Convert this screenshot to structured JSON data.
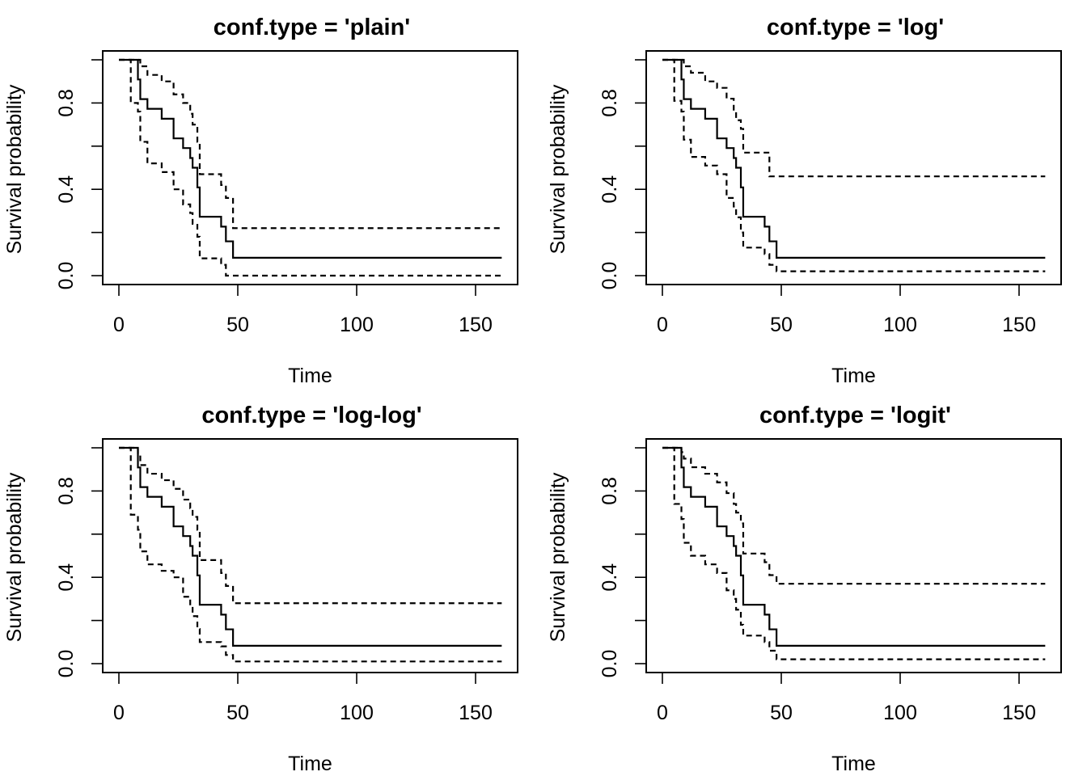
{
  "chart_data": [
    {
      "type": "line",
      "step": true,
      "title": "conf.type = 'plain'",
      "xlabel": "Time",
      "ylabel": "Survival probability",
      "xlim": [
        0,
        160
      ],
      "ylim": [
        0,
        1
      ],
      "xticks": [
        0,
        50,
        100,
        150
      ],
      "yticks": [
        0.0,
        0.2,
        0.4,
        0.6,
        0.8,
        1.0
      ],
      "ytick_labels": [
        "0.0",
        "",
        "0.4",
        "",
        "0.8",
        ""
      ],
      "series": [
        {
          "style": "solid",
          "x": [
            0,
            5,
            8,
            9,
            12,
            18,
            23,
            27,
            30,
            31,
            33,
            34,
            43,
            45,
            48,
            161
          ],
          "y": [
            1.0,
            1.0,
            0.909,
            0.818,
            0.773,
            0.727,
            0.636,
            0.591,
            0.545,
            0.5,
            0.409,
            0.273,
            0.227,
            0.159,
            0.083,
            0.083
          ]
        },
        {
          "style": "dashed",
          "x": [
            0,
            8,
            9,
            12,
            18,
            23,
            27,
            30,
            31,
            33,
            34,
            43,
            45,
            48,
            161
          ],
          "y": [
            1.0,
            1.0,
            0.97,
            0.93,
            0.9,
            0.84,
            0.8,
            0.75,
            0.7,
            0.62,
            0.47,
            0.42,
            0.36,
            0.22,
            0.22
          ]
        },
        {
          "style": "dashed",
          "x": [
            0,
            5,
            8,
            9,
            12,
            18,
            23,
            27,
            30,
            31,
            33,
            34,
            43,
            45,
            48,
            161
          ],
          "y": [
            1.0,
            0.8,
            0.76,
            0.62,
            0.52,
            0.48,
            0.4,
            0.33,
            0.29,
            0.24,
            0.18,
            0.08,
            0.05,
            0.0,
            0.0,
            0.0
          ]
        }
      ]
    },
    {
      "type": "line",
      "step": true,
      "title": "conf.type = 'log'",
      "xlabel": "Time",
      "ylabel": "Survival probability",
      "xlim": [
        0,
        160
      ],
      "ylim": [
        0,
        1
      ],
      "xticks": [
        0,
        50,
        100,
        150
      ],
      "yticks": [
        0.0,
        0.2,
        0.4,
        0.6,
        0.8,
        1.0
      ],
      "ytick_labels": [
        "0.0",
        "",
        "0.4",
        "",
        "0.8",
        ""
      ],
      "series": [
        {
          "style": "solid",
          "x": [
            0,
            5,
            8,
            9,
            12,
            18,
            23,
            27,
            30,
            31,
            33,
            34,
            43,
            45,
            48,
            161
          ],
          "y": [
            1.0,
            1.0,
            0.909,
            0.818,
            0.773,
            0.727,
            0.636,
            0.591,
            0.545,
            0.5,
            0.409,
            0.273,
            0.227,
            0.159,
            0.083,
            0.083
          ]
        },
        {
          "style": "dashed",
          "x": [
            0,
            8,
            9,
            12,
            18,
            23,
            27,
            30,
            31,
            33,
            34,
            43,
            45,
            48,
            161
          ],
          "y": [
            1.0,
            1.0,
            0.97,
            0.94,
            0.9,
            0.87,
            0.82,
            0.76,
            0.72,
            0.68,
            0.57,
            0.57,
            0.46,
            0.46,
            0.46
          ]
        },
        {
          "style": "dashed",
          "x": [
            0,
            5,
            8,
            9,
            12,
            18,
            23,
            27,
            30,
            31,
            33,
            34,
            43,
            45,
            48,
            161
          ],
          "y": [
            1.0,
            0.81,
            0.76,
            0.63,
            0.55,
            0.51,
            0.47,
            0.36,
            0.32,
            0.27,
            0.2,
            0.13,
            0.1,
            0.05,
            0.02,
            0.02
          ]
        }
      ]
    },
    {
      "type": "line",
      "step": true,
      "title": "conf.type = 'log-log'",
      "xlabel": "Time",
      "ylabel": "Survival probability",
      "xlim": [
        0,
        160
      ],
      "ylim": [
        0,
        1
      ],
      "xticks": [
        0,
        50,
        100,
        150
      ],
      "yticks": [
        0.0,
        0.2,
        0.4,
        0.6,
        0.8,
        1.0
      ],
      "ytick_labels": [
        "0.0",
        "",
        "0.4",
        "",
        "0.8",
        ""
      ],
      "series": [
        {
          "style": "solid",
          "x": [
            0,
            5,
            8,
            9,
            12,
            18,
            23,
            27,
            30,
            31,
            33,
            34,
            43,
            45,
            48,
            161
          ],
          "y": [
            1.0,
            1.0,
            0.909,
            0.818,
            0.773,
            0.727,
            0.636,
            0.591,
            0.545,
            0.5,
            0.409,
            0.273,
            0.227,
            0.159,
            0.083,
            0.083
          ]
        },
        {
          "style": "dashed",
          "x": [
            0,
            8,
            9,
            12,
            18,
            23,
            27,
            30,
            31,
            33,
            34,
            43,
            45,
            48,
            161
          ],
          "y": [
            1.0,
            0.96,
            0.92,
            0.88,
            0.85,
            0.81,
            0.76,
            0.72,
            0.68,
            0.62,
            0.48,
            0.42,
            0.36,
            0.28,
            0.28
          ]
        },
        {
          "style": "dashed",
          "x": [
            0,
            5,
            8,
            9,
            12,
            18,
            23,
            27,
            30,
            31,
            33,
            34,
            43,
            45,
            48,
            161
          ],
          "y": [
            1.0,
            0.69,
            0.62,
            0.52,
            0.46,
            0.43,
            0.4,
            0.31,
            0.27,
            0.22,
            0.16,
            0.1,
            0.08,
            0.04,
            0.01,
            0.01
          ]
        }
      ]
    },
    {
      "type": "line",
      "step": true,
      "title": "conf.type = 'logit'",
      "xlabel": "Time",
      "ylabel": "Survival probability",
      "xlim": [
        0,
        160
      ],
      "ylim": [
        0,
        1
      ],
      "xticks": [
        0,
        50,
        100,
        150
      ],
      "yticks": [
        0.0,
        0.2,
        0.4,
        0.6,
        0.8,
        1.0
      ],
      "ytick_labels": [
        "0.0",
        "",
        "0.4",
        "",
        "0.8",
        ""
      ],
      "series": [
        {
          "style": "solid",
          "x": [
            0,
            5,
            8,
            9,
            12,
            18,
            23,
            27,
            30,
            31,
            33,
            34,
            43,
            45,
            48,
            161
          ],
          "y": [
            1.0,
            1.0,
            0.909,
            0.818,
            0.773,
            0.727,
            0.636,
            0.591,
            0.545,
            0.5,
            0.409,
            0.273,
            0.227,
            0.159,
            0.083,
            0.083
          ]
        },
        {
          "style": "dashed",
          "x": [
            0,
            8,
            9,
            12,
            18,
            23,
            27,
            30,
            31,
            33,
            34,
            43,
            45,
            48,
            161
          ],
          "y": [
            1.0,
            0.98,
            0.95,
            0.91,
            0.88,
            0.84,
            0.79,
            0.74,
            0.7,
            0.65,
            0.51,
            0.47,
            0.41,
            0.37,
            0.37
          ]
        },
        {
          "style": "dashed",
          "x": [
            0,
            5,
            8,
            9,
            12,
            18,
            23,
            27,
            30,
            31,
            33,
            34,
            43,
            45,
            48,
            161
          ],
          "y": [
            1.0,
            0.74,
            0.67,
            0.56,
            0.5,
            0.46,
            0.42,
            0.34,
            0.3,
            0.25,
            0.18,
            0.13,
            0.1,
            0.06,
            0.02,
            0.02
          ]
        }
      ]
    }
  ]
}
